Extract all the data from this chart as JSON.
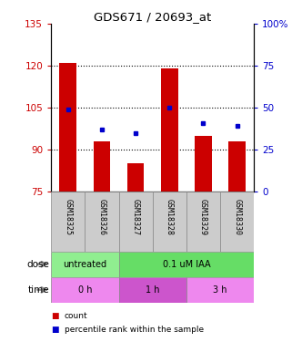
{
  "title": "GDS671 / 20693_at",
  "samples": [
    "GSM18325",
    "GSM18326",
    "GSM18327",
    "GSM18328",
    "GSM18329",
    "GSM18330"
  ],
  "red_values": [
    121,
    93,
    85,
    119,
    95,
    93
  ],
  "blue_values": [
    49,
    37,
    35,
    50,
    41,
    39
  ],
  "ylim_left": [
    75,
    135
  ],
  "ylim_right": [
    0,
    100
  ],
  "yticks_left": [
    75,
    90,
    105,
    120,
    135
  ],
  "yticks_right": [
    0,
    25,
    50,
    75,
    100
  ],
  "ytick_labels_right": [
    "0",
    "25",
    "50",
    "75",
    "100%"
  ],
  "hlines": [
    90,
    105,
    120
  ],
  "bar_color": "#cc0000",
  "dot_color": "#0000cc",
  "bar_width": 0.5,
  "tick_color_left": "#cc0000",
  "tick_color_right": "#0000cc",
  "dose_groups": [
    {
      "label": "untreated",
      "start": 0,
      "end": 2,
      "color": "#90ee90"
    },
    {
      "label": "0.1 uM IAA",
      "start": 2,
      "end": 6,
      "color": "#66dd66"
    }
  ],
  "time_groups": [
    {
      "label": "0 h",
      "start": 0,
      "end": 2,
      "color": "#ee88ee"
    },
    {
      "label": "1 h",
      "start": 2,
      "end": 4,
      "color": "#cc55cc"
    },
    {
      "label": "3 h",
      "start": 4,
      "end": 6,
      "color": "#ee88ee"
    }
  ],
  "sample_bg": "#cccccc",
  "legend_items": [
    {
      "color": "#cc0000",
      "label": "count"
    },
    {
      "color": "#0000cc",
      "label": "percentile rank within the sample"
    }
  ]
}
